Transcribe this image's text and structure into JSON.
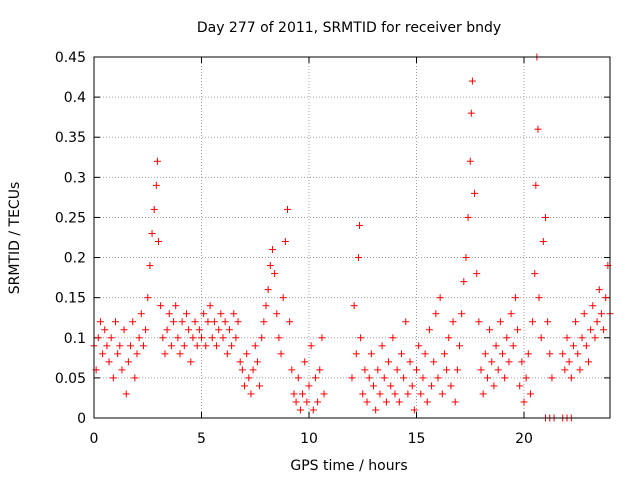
{
  "chart_data": {
    "type": "scatter",
    "title": "Day 277 of 2011, SRMTID for receiver bndy",
    "xlabel": "GPS time / hours",
    "ylabel": "SRMTID / TECUs",
    "xlim": [
      0,
      24
    ],
    "ylim": [
      0,
      0.45
    ],
    "xticks": [
      0,
      5,
      10,
      15,
      20
    ],
    "yticks": [
      0,
      0.05,
      0.1,
      0.15,
      0.2,
      0.25,
      0.3,
      0.35,
      0.4,
      0.45
    ],
    "xtick_labels": [
      "0",
      "5",
      "10",
      "15",
      "20"
    ],
    "ytick_labels": [
      "0",
      "0.05",
      "0.1",
      "0.15",
      "0.2",
      "0.25",
      "0.3",
      "0.35",
      "0.4",
      "0.45"
    ],
    "grid": true,
    "marker": "+",
    "color": "#ff0000",
    "series": [
      {
        "name": "SRMTID",
        "points": [
          [
            0.0,
            0.09
          ],
          [
            0.1,
            0.06
          ],
          [
            0.2,
            0.1
          ],
          [
            0.3,
            0.12
          ],
          [
            0.4,
            0.08
          ],
          [
            0.5,
            0.11
          ],
          [
            0.6,
            0.09
          ],
          [
            0.7,
            0.07
          ],
          [
            0.8,
            0.1
          ],
          [
            0.9,
            0.05
          ],
          [
            1.0,
            0.12
          ],
          [
            1.1,
            0.08
          ],
          [
            1.2,
            0.09
          ],
          [
            1.3,
            0.06
          ],
          [
            1.4,
            0.11
          ],
          [
            1.5,
            0.03
          ],
          [
            1.6,
            0.07
          ],
          [
            1.7,
            0.09
          ],
          [
            1.8,
            0.12
          ],
          [
            1.9,
            0.05
          ],
          [
            2.0,
            0.08
          ],
          [
            2.1,
            0.1
          ],
          [
            2.2,
            0.13
          ],
          [
            2.3,
            0.09
          ],
          [
            2.4,
            0.11
          ],
          [
            2.5,
            0.15
          ],
          [
            2.6,
            0.19
          ],
          [
            2.7,
            0.23
          ],
          [
            2.8,
            0.26
          ],
          [
            2.9,
            0.29
          ],
          [
            2.95,
            0.32
          ],
          [
            3.0,
            0.22
          ],
          [
            3.1,
            0.14
          ],
          [
            3.2,
            0.1
          ],
          [
            3.3,
            0.08
          ],
          [
            3.4,
            0.11
          ],
          [
            3.5,
            0.13
          ],
          [
            3.6,
            0.09
          ],
          [
            3.7,
            0.12
          ],
          [
            3.8,
            0.14
          ],
          [
            3.9,
            0.1
          ],
          [
            4.0,
            0.08
          ],
          [
            4.1,
            0.12
          ],
          [
            4.2,
            0.09
          ],
          [
            4.3,
            0.13
          ],
          [
            4.4,
            0.11
          ],
          [
            4.5,
            0.07
          ],
          [
            4.6,
            0.1
          ],
          [
            4.7,
            0.12
          ],
          [
            4.8,
            0.09
          ],
          [
            4.9,
            0.11
          ],
          [
            5.0,
            0.1
          ],
          [
            5.1,
            0.13
          ],
          [
            5.2,
            0.09
          ],
          [
            5.3,
            0.12
          ],
          [
            5.4,
            0.14
          ],
          [
            5.5,
            0.1
          ],
          [
            5.6,
            0.12
          ],
          [
            5.7,
            0.09
          ],
          [
            5.8,
            0.11
          ],
          [
            5.9,
            0.13
          ],
          [
            6.0,
            0.1
          ],
          [
            6.1,
            0.12
          ],
          [
            6.2,
            0.08
          ],
          [
            6.3,
            0.11
          ],
          [
            6.4,
            0.09
          ],
          [
            6.5,
            0.13
          ],
          [
            6.6,
            0.1
          ],
          [
            6.7,
            0.12
          ],
          [
            6.8,
            0.07
          ],
          [
            6.9,
            0.06
          ],
          [
            7.0,
            0.04
          ],
          [
            7.1,
            0.08
          ],
          [
            7.2,
            0.05
          ],
          [
            7.3,
            0.03
          ],
          [
            7.4,
            0.06
          ],
          [
            7.5,
            0.09
          ],
          [
            7.6,
            0.07
          ],
          [
            7.7,
            0.04
          ],
          [
            7.8,
            0.1
          ],
          [
            7.9,
            0.12
          ],
          [
            8.0,
            0.14
          ],
          [
            8.1,
            0.16
          ],
          [
            8.2,
            0.19
          ],
          [
            8.3,
            0.21
          ],
          [
            8.4,
            0.18
          ],
          [
            8.5,
            0.13
          ],
          [
            8.6,
            0.1
          ],
          [
            8.7,
            0.08
          ],
          [
            8.8,
            0.15
          ],
          [
            8.9,
            0.22
          ],
          [
            9.0,
            0.26
          ],
          [
            9.1,
            0.12
          ],
          [
            9.2,
            0.06
          ],
          [
            9.3,
            0.03
          ],
          [
            9.4,
            0.02
          ],
          [
            9.5,
            0.05
          ],
          [
            9.6,
            0.01
          ],
          [
            9.7,
            0.03
          ],
          [
            9.8,
            0.07
          ],
          [
            9.9,
            0.02
          ],
          [
            10.0,
            0.04
          ],
          [
            10.1,
            0.09
          ],
          [
            10.2,
            0.01
          ],
          [
            10.3,
            0.05
          ],
          [
            10.4,
            0.02
          ],
          [
            10.5,
            0.06
          ],
          [
            10.6,
            0.1
          ],
          [
            10.7,
            0.03
          ],
          [
            12.0,
            0.05
          ],
          [
            12.1,
            0.14
          ],
          [
            12.2,
            0.08
          ],
          [
            12.3,
            0.2
          ],
          [
            12.35,
            0.24
          ],
          [
            12.4,
            0.1
          ],
          [
            12.5,
            0.03
          ],
          [
            12.6,
            0.06
          ],
          [
            12.7,
            0.02
          ],
          [
            12.8,
            0.05
          ],
          [
            12.9,
            0.08
          ],
          [
            13.0,
            0.04
          ],
          [
            13.1,
            0.01
          ],
          [
            13.2,
            0.06
          ],
          [
            13.3,
            0.03
          ],
          [
            13.4,
            0.09
          ],
          [
            13.5,
            0.05
          ],
          [
            13.6,
            0.02
          ],
          [
            13.7,
            0.07
          ],
          [
            13.8,
            0.04
          ],
          [
            13.9,
            0.1
          ],
          [
            14.0,
            0.03
          ],
          [
            14.1,
            0.06
          ],
          [
            14.2,
            0.02
          ],
          [
            14.3,
            0.08
          ],
          [
            14.4,
            0.05
          ],
          [
            14.5,
            0.12
          ],
          [
            14.6,
            0.03
          ],
          [
            14.7,
            0.07
          ],
          [
            14.8,
            0.04
          ],
          [
            14.9,
            0.01
          ],
          [
            15.0,
            0.06
          ],
          [
            15.1,
            0.09
          ],
          [
            15.2,
            0.03
          ],
          [
            15.3,
            0.05
          ],
          [
            15.4,
            0.08
          ],
          [
            15.5,
            0.02
          ],
          [
            15.6,
            0.11
          ],
          [
            15.7,
            0.04
          ],
          [
            15.8,
            0.07
          ],
          [
            15.9,
            0.13
          ],
          [
            16.0,
            0.05
          ],
          [
            16.1,
            0.15
          ],
          [
            16.2,
            0.03
          ],
          [
            16.3,
            0.08
          ],
          [
            16.4,
            0.06
          ],
          [
            16.5,
            0.1
          ],
          [
            16.6,
            0.04
          ],
          [
            16.7,
            0.12
          ],
          [
            16.8,
            0.02
          ],
          [
            16.9,
            0.06
          ],
          [
            17.0,
            0.09
          ],
          [
            17.1,
            0.13
          ],
          [
            17.2,
            0.17
          ],
          [
            17.3,
            0.2
          ],
          [
            17.4,
            0.25
          ],
          [
            17.5,
            0.32
          ],
          [
            17.55,
            0.38
          ],
          [
            17.6,
            0.42
          ],
          [
            17.7,
            0.28
          ],
          [
            17.8,
            0.18
          ],
          [
            17.9,
            0.12
          ],
          [
            18.0,
            0.06
          ],
          [
            18.1,
            0.03
          ],
          [
            18.2,
            0.08
          ],
          [
            18.3,
            0.05
          ],
          [
            18.4,
            0.11
          ],
          [
            18.5,
            0.07
          ],
          [
            18.6,
            0.04
          ],
          [
            18.7,
            0.09
          ],
          [
            18.8,
            0.06
          ],
          [
            18.9,
            0.12
          ],
          [
            19.0,
            0.08
          ],
          [
            19.1,
            0.05
          ],
          [
            19.2,
            0.1
          ],
          [
            19.3,
            0.07
          ],
          [
            19.4,
            0.13
          ],
          [
            19.5,
            0.09
          ],
          [
            19.6,
            0.15
          ],
          [
            19.7,
            0.11
          ],
          [
            19.8,
            0.04
          ],
          [
            19.9,
            0.07
          ],
          [
            20.0,
            0.02
          ],
          [
            20.1,
            0.05
          ],
          [
            20.2,
            0.08
          ],
          [
            20.3,
            0.03
          ],
          [
            20.4,
            0.12
          ],
          [
            20.5,
            0.18
          ],
          [
            20.55,
            0.29
          ],
          [
            20.6,
            0.45
          ],
          [
            20.65,
            0.36
          ],
          [
            20.7,
            0.15
          ],
          [
            20.8,
            0.1
          ],
          [
            20.9,
            0.22
          ],
          [
            21.0,
            0.25
          ],
          [
            21.1,
            0.12
          ],
          [
            21.2,
            0.08
          ],
          [
            21.3,
            0.05
          ],
          [
            21.0,
            0.0
          ],
          [
            21.2,
            0.0
          ],
          [
            21.4,
            0.0
          ],
          [
            21.8,
            0.0
          ],
          [
            22.0,
            0.0
          ],
          [
            22.2,
            0.0
          ],
          [
            21.8,
            0.08
          ],
          [
            21.9,
            0.06
          ],
          [
            22.0,
            0.1
          ],
          [
            22.1,
            0.07
          ],
          [
            22.2,
            0.05
          ],
          [
            22.3,
            0.09
          ],
          [
            22.4,
            0.12
          ],
          [
            22.5,
            0.08
          ],
          [
            22.6,
            0.06
          ],
          [
            22.7,
            0.1
          ],
          [
            22.8,
            0.13
          ],
          [
            22.9,
            0.09
          ],
          [
            23.0,
            0.07
          ],
          [
            23.1,
            0.11
          ],
          [
            23.2,
            0.14
          ],
          [
            23.3,
            0.1
          ],
          [
            23.4,
            0.12
          ],
          [
            23.5,
            0.16
          ],
          [
            23.6,
            0.13
          ],
          [
            23.7,
            0.11
          ],
          [
            23.8,
            0.15
          ],
          [
            23.9,
            0.19
          ],
          [
            24.0,
            0.13
          ]
        ]
      }
    ]
  }
}
